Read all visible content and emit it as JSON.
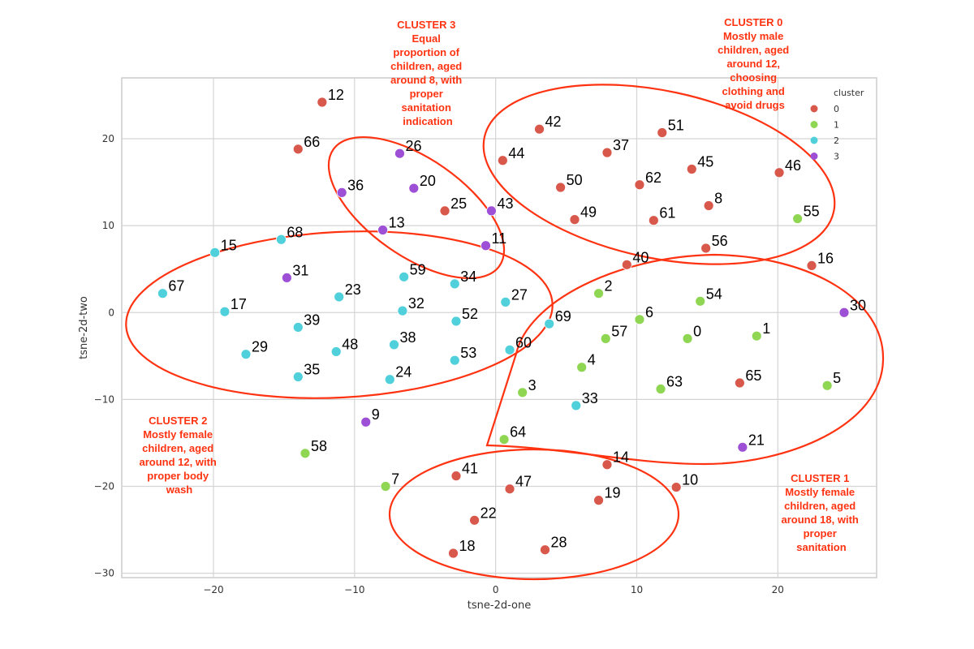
{
  "chart_data": {
    "type": "scatter",
    "xlabel": "tsne-2d-one",
    "ylabel": "tsne-2d-two",
    "xlim": [
      -26.5,
      27
    ],
    "ylim": [
      -30.5,
      27
    ],
    "x_ticks": [
      -20,
      -10,
      0,
      10,
      20
    ],
    "y_ticks": [
      -30,
      -20,
      -10,
      0,
      10,
      20
    ],
    "grid": true,
    "legend": {
      "title": "cluster",
      "placement": "top-right",
      "entries": [
        {
          "label": "0",
          "color": "#d9584c"
        },
        {
          "label": "1",
          "color": "#8fd653"
        },
        {
          "label": "2",
          "color": "#4fd0da"
        },
        {
          "label": "3",
          "color": "#9d4fd6"
        }
      ]
    },
    "points": [
      {
        "label": "12",
        "x": -12.3,
        "y": 24.2,
        "cluster": 0
      },
      {
        "label": "66",
        "x": -14.0,
        "y": 18.8,
        "cluster": 0
      },
      {
        "label": "26",
        "x": -6.8,
        "y": 18.3,
        "cluster": 3
      },
      {
        "label": "36",
        "x": -10.9,
        "y": 13.8,
        "cluster": 3
      },
      {
        "label": "20",
        "x": -5.8,
        "y": 14.3,
        "cluster": 3
      },
      {
        "label": "25",
        "x": -3.6,
        "y": 11.7,
        "cluster": 0
      },
      {
        "label": "43",
        "x": -0.3,
        "y": 11.7,
        "cluster": 3
      },
      {
        "label": "13",
        "x": -8.0,
        "y": 9.5,
        "cluster": 3
      },
      {
        "label": "11",
        "x": -0.7,
        "y": 7.7,
        "cluster": 3
      },
      {
        "label": "68",
        "x": -15.2,
        "y": 8.4,
        "cluster": 2
      },
      {
        "label": "15",
        "x": -19.9,
        "y": 6.9,
        "cluster": 2
      },
      {
        "label": "31",
        "x": -14.8,
        "y": 4.0,
        "cluster": 3
      },
      {
        "label": "59",
        "x": -6.5,
        "y": 4.1,
        "cluster": 2
      },
      {
        "label": "34",
        "x": -2.9,
        "y": 3.3,
        "cluster": 2
      },
      {
        "label": "67",
        "x": -23.6,
        "y": 2.2,
        "cluster": 2
      },
      {
        "label": "23",
        "x": -11.1,
        "y": 1.8,
        "cluster": 2
      },
      {
        "label": "27",
        "x": 0.7,
        "y": 1.2,
        "cluster": 2
      },
      {
        "label": "17",
        "x": -19.2,
        "y": 0.1,
        "cluster": 2
      },
      {
        "label": "32",
        "x": -6.6,
        "y": 0.2,
        "cluster": 2
      },
      {
        "label": "52",
        "x": -2.8,
        "y": -1.0,
        "cluster": 2
      },
      {
        "label": "39",
        "x": -14.0,
        "y": -1.7,
        "cluster": 2
      },
      {
        "label": "69",
        "x": 3.8,
        "y": -1.3,
        "cluster": 2
      },
      {
        "label": "38",
        "x": -7.2,
        "y": -3.7,
        "cluster": 2
      },
      {
        "label": "48",
        "x": -11.3,
        "y": -4.5,
        "cluster": 2
      },
      {
        "label": "29",
        "x": -17.7,
        "y": -4.8,
        "cluster": 2
      },
      {
        "label": "60",
        "x": 1.0,
        "y": -4.3,
        "cluster": 2
      },
      {
        "label": "53",
        "x": -2.9,
        "y": -5.5,
        "cluster": 2
      },
      {
        "label": "35",
        "x": -14.0,
        "y": -7.4,
        "cluster": 2
      },
      {
        "label": "24",
        "x": -7.5,
        "y": -7.7,
        "cluster": 2
      },
      {
        "label": "33",
        "x": 5.7,
        "y": -10.7,
        "cluster": 2
      },
      {
        "label": "42",
        "x": 3.1,
        "y": 21.1,
        "cluster": 0
      },
      {
        "label": "51",
        "x": 11.8,
        "y": 20.7,
        "cluster": 0
      },
      {
        "label": "37",
        "x": 7.9,
        "y": 18.4,
        "cluster": 0
      },
      {
        "label": "44",
        "x": 0.5,
        "y": 17.5,
        "cluster": 0
      },
      {
        "label": "45",
        "x": 13.9,
        "y": 16.5,
        "cluster": 0
      },
      {
        "label": "46",
        "x": 20.1,
        "y": 16.1,
        "cluster": 0
      },
      {
        "label": "50",
        "x": 4.6,
        "y": 14.4,
        "cluster": 0
      },
      {
        "label": "62",
        "x": 10.2,
        "y": 14.7,
        "cluster": 0
      },
      {
        "label": "8",
        "x": 15.1,
        "y": 12.3,
        "cluster": 0
      },
      {
        "label": "55",
        "x": 21.4,
        "y": 10.8,
        "cluster": 1
      },
      {
        "label": "49",
        "x": 5.6,
        "y": 10.7,
        "cluster": 0
      },
      {
        "label": "61",
        "x": 11.2,
        "y": 10.6,
        "cluster": 0
      },
      {
        "label": "56",
        "x": 14.9,
        "y": 7.4,
        "cluster": 0
      },
      {
        "label": "40",
        "x": 9.3,
        "y": 5.5,
        "cluster": 0
      },
      {
        "label": "16",
        "x": 22.4,
        "y": 5.4,
        "cluster": 0
      },
      {
        "label": "2",
        "x": 7.3,
        "y": 2.2,
        "cluster": 1
      },
      {
        "label": "54",
        "x": 14.5,
        "y": 1.3,
        "cluster": 1
      },
      {
        "label": "6",
        "x": 10.2,
        "y": -0.8,
        "cluster": 1
      },
      {
        "label": "30",
        "x": 24.7,
        "y": 0.0,
        "cluster": 3
      },
      {
        "label": "57",
        "x": 7.8,
        "y": -3.0,
        "cluster": 1
      },
      {
        "label": "0",
        "x": 13.6,
        "y": -3.0,
        "cluster": 1
      },
      {
        "label": "1",
        "x": 18.5,
        "y": -2.7,
        "cluster": 1
      },
      {
        "label": "4",
        "x": 6.1,
        "y": -6.3,
        "cluster": 1
      },
      {
        "label": "63",
        "x": 11.7,
        "y": -8.8,
        "cluster": 1
      },
      {
        "label": "65",
        "x": 17.3,
        "y": -8.1,
        "cluster": 0
      },
      {
        "label": "5",
        "x": 23.5,
        "y": -8.4,
        "cluster": 1
      },
      {
        "label": "3",
        "x": 1.9,
        "y": -9.2,
        "cluster": 1
      },
      {
        "label": "64",
        "x": 0.6,
        "y": -14.6,
        "cluster": 1
      },
      {
        "label": "21",
        "x": 17.5,
        "y": -15.5,
        "cluster": 3
      },
      {
        "label": "9",
        "x": -9.2,
        "y": -12.6,
        "cluster": 3
      },
      {
        "label": "58",
        "x": -13.5,
        "y": -16.2,
        "cluster": 1
      },
      {
        "label": "14",
        "x": 7.9,
        "y": -17.5,
        "cluster": 0
      },
      {
        "label": "41",
        "x": -2.8,
        "y": -18.8,
        "cluster": 0
      },
      {
        "label": "7",
        "x": -7.8,
        "y": -20.0,
        "cluster": 1
      },
      {
        "label": "47",
        "x": 1.0,
        "y": -20.3,
        "cluster": 0
      },
      {
        "label": "10",
        "x": 12.8,
        "y": -20.1,
        "cluster": 0
      },
      {
        "label": "19",
        "x": 7.3,
        "y": -21.6,
        "cluster": 0
      },
      {
        "label": "22",
        "x": -1.5,
        "y": -23.9,
        "cluster": 0
      },
      {
        "label": "18",
        "x": -3.0,
        "y": -27.7,
        "cluster": 0
      },
      {
        "label": "28",
        "x": 3.5,
        "y": -27.3,
        "cluster": 0
      }
    ],
    "annotations": [
      {
        "id": "cluster0",
        "lines": [
          "CLUSTER 0",
          "Mostly male",
          "children, aged",
          "around 12,",
          "choosing",
          "clothing and",
          "avoid drugs"
        ]
      },
      {
        "id": "cluster1",
        "lines": [
          "CLUSTER 1",
          "Mostly female",
          "children, aged",
          "around 18, with",
          "proper",
          "sanitation"
        ]
      },
      {
        "id": "cluster2",
        "lines": [
          "CLUSTER 2",
          "Mostly female",
          "children, aged",
          "around 12, with",
          "proper body",
          "wash"
        ]
      },
      {
        "id": "cluster3",
        "lines": [
          "CLUSTER 3",
          "Equal",
          "proportion of",
          "children, aged",
          "around 8, with",
          "proper",
          "sanitation",
          "indication"
        ]
      }
    ]
  }
}
